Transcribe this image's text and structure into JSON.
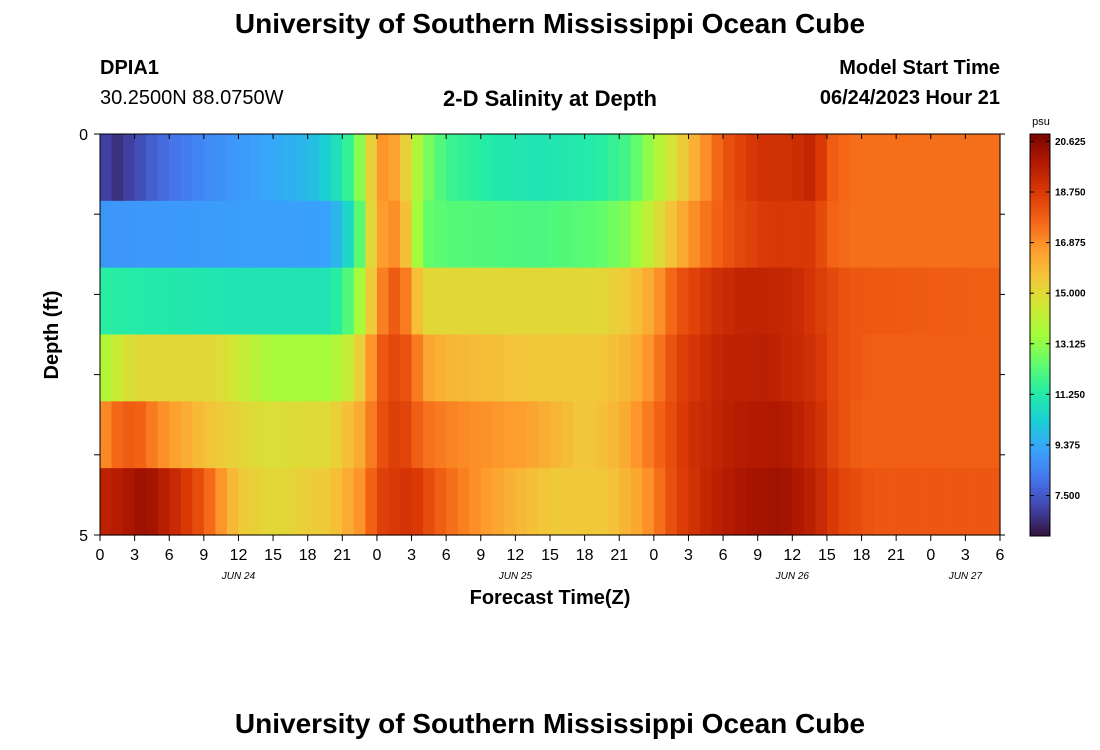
{
  "header": {
    "title": "University of Southern Mississippi Ocean Cube",
    "station": "DPIA1",
    "coords": "30.2500N  88.0750W",
    "plot_title": "2-D Salinity at Depth",
    "model_start_label": "Model Start Time",
    "model_start_value": "06/24/2023 Hour 21"
  },
  "footer": {
    "title": "University of Southern Mississippi Ocean Cube"
  },
  "chart_data": {
    "type": "heatmap",
    "title": "2-D Salinity at Depth",
    "xlabel": "Forecast Time(Z)",
    "ylabel": "Depth (ft)",
    "colorbar_unit": "psu",
    "colorbar_ticks": [
      "20.625",
      "18.750",
      "16.875",
      "15.000",
      "13.125",
      "11.250",
      "9.375",
      "7.500"
    ],
    "zlim": [
      6.0,
      20.9
    ],
    "colormap": [
      "#30123b",
      "#4145ab",
      "#4675ed",
      "#39a2fc",
      "#1bcfd4",
      "#24eca6",
      "#61fc6c",
      "#a4fc3b",
      "#d1e834",
      "#f3c63a",
      "#fe9b2d",
      "#f36315",
      "#d93806",
      "#b11901",
      "#7a0402"
    ],
    "x_tick_labels": [
      "0",
      "3",
      "6",
      "9",
      "12",
      "15",
      "18",
      "21",
      "0",
      "3",
      "6",
      "9",
      "12",
      "15",
      "18",
      "21",
      "0",
      "3",
      "6",
      "9",
      "12",
      "15",
      "18",
      "21",
      "0",
      "3",
      "6"
    ],
    "x_date_labels": [
      {
        "label": "JUN 24",
        "hour": 12
      },
      {
        "label": "JUN 25",
        "hour": 36
      },
      {
        "label": "JUN 26",
        "hour": 60
      },
      {
        "label": "JUN 27",
        "hour": 75
      }
    ],
    "x_hours_range": [
      0,
      78
    ],
    "y_tick_labels": [
      "0",
      "5"
    ],
    "ylim": [
      0,
      5
    ],
    "depth_layers": 5,
    "layer_keyframes": [
      [
        [
          0,
          7.4
        ],
        [
          1,
          6.5
        ],
        [
          2,
          6.8
        ],
        [
          5,
          7.8
        ],
        [
          9,
          8.6
        ],
        [
          14,
          9.2
        ],
        [
          18,
          9.7
        ],
        [
          20,
          10.5
        ],
        [
          22,
          12.0
        ],
        [
          23,
          14.0
        ],
        [
          24,
          16.5
        ],
        [
          25,
          17.0
        ],
        [
          26,
          16.0
        ],
        [
          27,
          14.5
        ],
        [
          28,
          13.0
        ],
        [
          30,
          11.8
        ],
        [
          34,
          11.2
        ],
        [
          38,
          11.0
        ],
        [
          43,
          11.3
        ],
        [
          46,
          12.0
        ],
        [
          48,
          13.5
        ],
        [
          50,
          15.0
        ],
        [
          52,
          16.5
        ],
        [
          54,
          18.0
        ],
        [
          57,
          19.0
        ],
        [
          60,
          19.0
        ],
        [
          62,
          19.5
        ],
        [
          63,
          18.0
        ],
        [
          65,
          17.5
        ],
        [
          70,
          17.5
        ],
        [
          78,
          17.5
        ]
      ],
      [
        [
          0,
          8.9
        ],
        [
          20,
          9.2
        ],
        [
          22,
          11.0
        ],
        [
          23,
          13.5
        ],
        [
          24,
          16.5
        ],
        [
          26,
          17.0
        ],
        [
          27,
          14.5
        ],
        [
          28,
          12.5
        ],
        [
          30,
          12.2
        ],
        [
          38,
          12.0
        ],
        [
          43,
          12.3
        ],
        [
          46,
          13.0
        ],
        [
          48,
          14.5
        ],
        [
          50,
          16.0
        ],
        [
          52,
          17.2
        ],
        [
          55,
          18.3
        ],
        [
          58,
          18.8
        ],
        [
          62,
          18.8
        ],
        [
          63,
          17.8
        ],
        [
          65,
          17.5
        ],
        [
          78,
          17.5
        ]
      ],
      [
        [
          0,
          11.4
        ],
        [
          12,
          11.0
        ],
        [
          20,
          11.0
        ],
        [
          22,
          12.5
        ],
        [
          23,
          14.5
        ],
        [
          24,
          16.5
        ],
        [
          25,
          17.8
        ],
        [
          26,
          18.0
        ],
        [
          27,
          16.5
        ],
        [
          28,
          15.0
        ],
        [
          31,
          15.0
        ],
        [
          38,
          15.0
        ],
        [
          43,
          15.0
        ],
        [
          46,
          15.5
        ],
        [
          48,
          16.5
        ],
        [
          50,
          18.0
        ],
        [
          53,
          19.0
        ],
        [
          56,
          19.5
        ],
        [
          60,
          19.3
        ],
        [
          63,
          18.5
        ],
        [
          65,
          18.0
        ],
        [
          78,
          17.8
        ]
      ],
      [
        [
          0,
          13.6
        ],
        [
          3,
          15.0
        ],
        [
          10,
          15.0
        ],
        [
          15,
          13.5
        ],
        [
          20,
          13.5
        ],
        [
          22,
          14.5
        ],
        [
          23,
          16.0
        ],
        [
          24,
          17.5
        ],
        [
          25,
          18.5
        ],
        [
          27,
          18.0
        ],
        [
          28,
          16.5
        ],
        [
          30,
          16.0
        ],
        [
          38,
          15.5
        ],
        [
          43,
          15.5
        ],
        [
          46,
          16.0
        ],
        [
          48,
          17.0
        ],
        [
          50,
          18.5
        ],
        [
          54,
          19.5
        ],
        [
          58,
          19.6
        ],
        [
          62,
          19.0
        ],
        [
          64,
          18.2
        ],
        [
          67,
          17.8
        ],
        [
          78,
          17.8
        ]
      ],
      [
        [
          0,
          16.5
        ],
        [
          1,
          17.5
        ],
        [
          3,
          18.0
        ],
        [
          5,
          17.0
        ],
        [
          8,
          16.0
        ],
        [
          10,
          15.5
        ],
        [
          14,
          14.8
        ],
        [
          20,
          15.0
        ],
        [
          23,
          16.5
        ],
        [
          24,
          18.0
        ],
        [
          26,
          18.8
        ],
        [
          28,
          17.5
        ],
        [
          31,
          17.0
        ],
        [
          37,
          16.5
        ],
        [
          42,
          15.5
        ],
        [
          45,
          16.0
        ],
        [
          48,
          17.5
        ],
        [
          51,
          19.0
        ],
        [
          55,
          19.7
        ],
        [
          59,
          19.9
        ],
        [
          62,
          19.2
        ],
        [
          64,
          18.2
        ],
        [
          66,
          17.8
        ],
        [
          78,
          17.8
        ]
      ],
      [
        [
          0,
          19.5
        ],
        [
          2,
          19.8
        ],
        [
          4,
          20.3
        ],
        [
          6,
          19.5
        ],
        [
          9,
          18.0
        ],
        [
          12,
          15.5
        ],
        [
          15,
          15.0
        ],
        [
          20,
          15.5
        ],
        [
          23,
          17.0
        ],
        [
          24,
          18.5
        ],
        [
          27,
          19.0
        ],
        [
          29,
          18.0
        ],
        [
          32,
          17.0
        ],
        [
          36,
          16.0
        ],
        [
          39,
          15.5
        ],
        [
          44,
          15.5
        ],
        [
          47,
          16.5
        ],
        [
          50,
          18.5
        ],
        [
          53,
          19.5
        ],
        [
          56,
          20.0
        ],
        [
          59,
          20.2
        ],
        [
          62,
          19.5
        ],
        [
          64,
          18.5
        ],
        [
          67,
          18.0
        ],
        [
          78,
          18.0
        ]
      ]
    ]
  }
}
